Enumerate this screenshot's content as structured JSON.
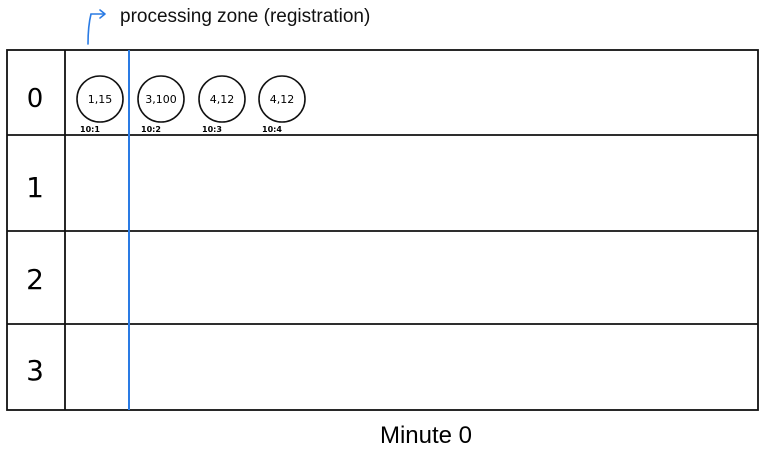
{
  "annotation": {
    "text": "processing zone (registration)",
    "color": "#2a7be4"
  },
  "rows": [
    {
      "label": "0",
      "items": [
        {
          "value": "1,15",
          "tag": "10:1"
        },
        {
          "value": "3,100",
          "tag": "10:2"
        },
        {
          "value": "4,12",
          "tag": "10:3"
        },
        {
          "value": "4,12",
          "tag": "10:4"
        }
      ]
    },
    {
      "label": "1",
      "items": []
    },
    {
      "label": "2",
      "items": []
    },
    {
      "label": "3",
      "items": []
    }
  ],
  "caption": "Minute 0"
}
